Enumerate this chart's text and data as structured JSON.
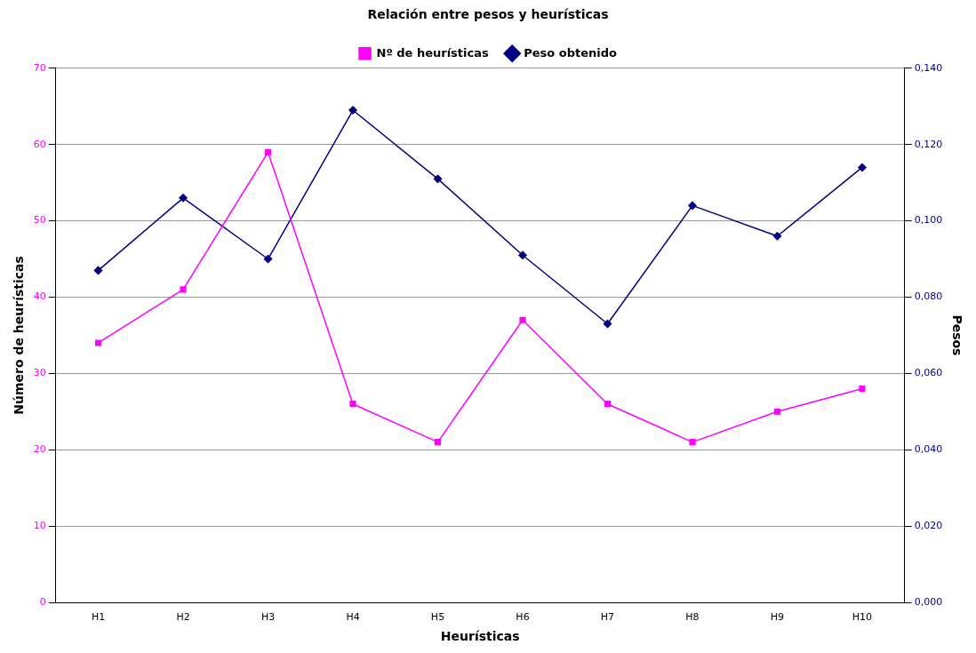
{
  "chart_data": {
    "type": "line",
    "title": "Relación entre pesos y heurísticas",
    "xlabel": "Heurísticas",
    "ylabel": "Número de heurísticas",
    "y2label": "Pesos",
    "categories": [
      "H1",
      "H2",
      "H3",
      "H4",
      "H5",
      "H6",
      "H7",
      "H8",
      "H9",
      "H10"
    ],
    "series": [
      {
        "name": "Nº de heurísticas",
        "color": "#ff00ff",
        "marker": "square",
        "values": [
          34,
          41,
          59,
          26,
          21,
          37,
          26,
          21,
          25,
          28
        ]
      },
      {
        "name": "Peso obtenido",
        "color": "#000080",
        "marker": "diamond",
        "axis": "y2",
        "values": [
          0.087,
          0.106,
          0.09,
          0.129,
          0.111,
          0.091,
          0.073,
          0.104,
          0.096,
          0.114
        ]
      }
    ],
    "ylim": [
      0,
      70
    ],
    "yticks": [
      0,
      10,
      20,
      30,
      40,
      50,
      60,
      70
    ],
    "y2lim": [
      0,
      0.14
    ],
    "y2ticks": [
      {
        "value": 0,
        "label": "0,000"
      },
      {
        "value": 0.02,
        "label": "0,020"
      },
      {
        "value": 0.04,
        "label": "0,040"
      },
      {
        "value": 0.06,
        "label": "0,060"
      },
      {
        "value": 0.08,
        "label": "0,080"
      },
      {
        "value": 0.1,
        "label": "0,100"
      },
      {
        "value": 0.12,
        "label": "0,120"
      },
      {
        "value": 0.14,
        "label": "0,140"
      }
    ],
    "grid": "y",
    "legend": "top",
    "line_style": "solid"
  }
}
